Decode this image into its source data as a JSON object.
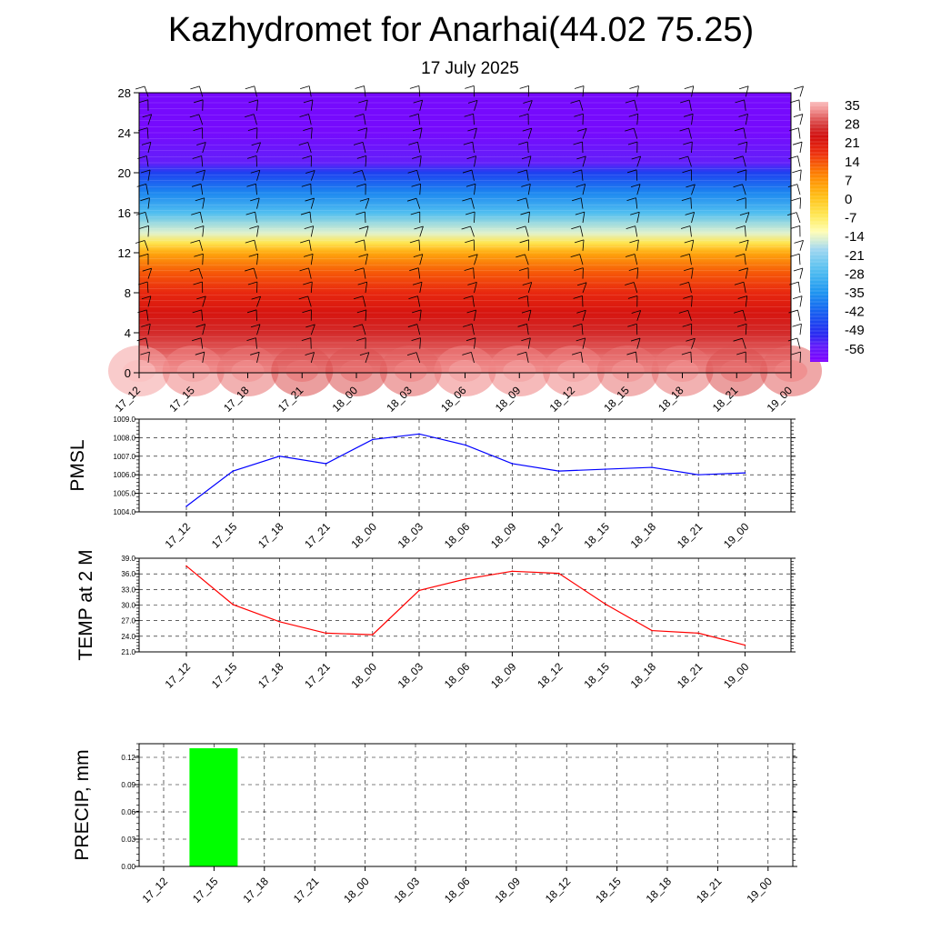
{
  "header": {
    "title": "Kazhydromet for Anarhai(44.02 75.25)",
    "subtitle": "17 July 2025"
  },
  "time_labels": [
    "17_12",
    "17_15",
    "17_18",
    "17_21",
    "18_00",
    "18_03",
    "18_06",
    "18_09",
    "18_12",
    "18_15",
    "18_18",
    "18_21",
    "19_00"
  ],
  "colorbar": {
    "labels": [
      "35",
      "28",
      "21",
      "14",
      "7",
      "0",
      "-7",
      "-14",
      "-21",
      "-28",
      "-35",
      "-42",
      "-49",
      "-56"
    ]
  },
  "chart_data": [
    {
      "type": "heatmap",
      "title": "Kazhydromet for Anarhai(44.02 75.25)",
      "subtitle": "17 July 2025",
      "xlabel": "",
      "ylabel": "",
      "x": [
        "17_12",
        "17_15",
        "17_18",
        "17_21",
        "18_00",
        "18_03",
        "18_06",
        "18_09",
        "18_12",
        "18_15",
        "18_18",
        "18_21",
        "19_00"
      ],
      "yticks": [
        0,
        4,
        8,
        12,
        16,
        20,
        24,
        28
      ],
      "ylim": [
        0,
        28
      ],
      "colorbar_levels": [
        35,
        28,
        21,
        14,
        7,
        0,
        -7,
        -14,
        -21,
        -28,
        -35,
        -42,
        -49,
        -56
      ],
      "profile_y": [
        0,
        2,
        4,
        6,
        8,
        10,
        12,
        13,
        14,
        16,
        18,
        20,
        21,
        22,
        24,
        28
      ],
      "profile_t": [
        33,
        29,
        25,
        21,
        17,
        12,
        3,
        -7,
        -16,
        -28,
        -38,
        -48,
        -56,
        -57,
        -60,
        -60
      ],
      "surface_t": [
        33,
        31,
        30,
        28,
        28,
        29,
        31,
        31,
        31,
        30,
        30,
        28,
        29
      ]
    },
    {
      "type": "line",
      "ylabel": "PMSL",
      "x": [
        "17_12",
        "17_15",
        "17_18",
        "17_21",
        "18_00",
        "18_03",
        "18_06",
        "18_09",
        "18_12",
        "18_15",
        "18_18",
        "18_21",
        "19_00"
      ],
      "yticks": [
        "1004.0",
        "1005.0",
        "1006.0",
        "1007.0",
        "1008.0",
        "1009.0"
      ],
      "ylim": [
        1004.0,
        1009.0
      ],
      "series": [
        {
          "values": [
            1004.3,
            1006.2,
            1007.0,
            1006.6,
            1007.9,
            1008.2,
            1007.6,
            1006.6,
            1006.2,
            1006.3,
            1006.4,
            1006.0,
            1006.1
          ],
          "color": "#0000ff"
        }
      ]
    },
    {
      "type": "line",
      "ylabel": "TEMP at 2 M",
      "x": [
        "17_12",
        "17_15",
        "17_18",
        "17_21",
        "18_00",
        "18_03",
        "18_06",
        "18_09",
        "18_12",
        "18_15",
        "18_18",
        "18_21",
        "19_00"
      ],
      "yticks": [
        "21.0",
        "24.0",
        "27.0",
        "30.0",
        "33.0",
        "36.0",
        "39.0"
      ],
      "ylim": [
        21.0,
        39.0
      ],
      "series": [
        {
          "values": [
            37.5,
            30.1,
            26.8,
            24.6,
            24.3,
            32.8,
            35.0,
            36.5,
            36.1,
            30.2,
            25.1,
            24.6,
            22.3
          ],
          "color": "#ff0000"
        }
      ]
    },
    {
      "type": "bar",
      "ylabel": "PRECIP, mm",
      "x": [
        "17_12",
        "17_15",
        "17_18",
        "17_21",
        "18_00",
        "18_03",
        "18_06",
        "18_09",
        "18_12",
        "18_15",
        "18_18",
        "18_21",
        "19_00"
      ],
      "yticks": [
        "0.00",
        "0.03",
        "0.06",
        "0.09",
        "0.12"
      ],
      "ylim": [
        0,
        0.135
      ],
      "series": [
        {
          "values": [
            0,
            0.13,
            0,
            0,
            0,
            0,
            0,
            0,
            0,
            0,
            0,
            0,
            0
          ],
          "color": "#00ff00"
        }
      ]
    }
  ]
}
